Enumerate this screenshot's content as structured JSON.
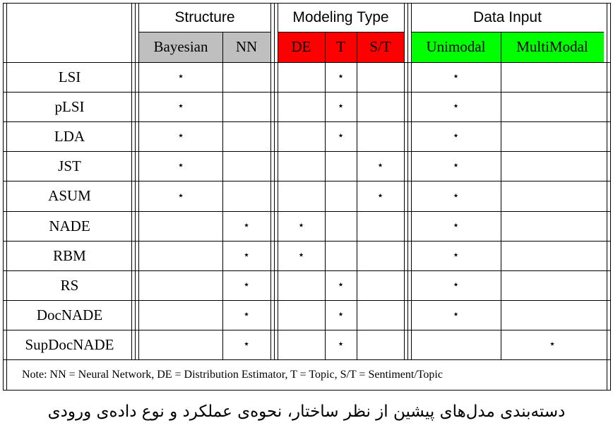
{
  "group_headers": [
    "Structure",
    "Modeling Type",
    "Data Input"
  ],
  "sub_headers": [
    {
      "label": "Bayesian",
      "color": "#bfbfbf"
    },
    {
      "label": "NN",
      "color": "#bfbfbf"
    },
    {
      "label": "DE",
      "color": "#ff0000"
    },
    {
      "label": "T",
      "color": "#ff0000"
    },
    {
      "label": "S/T",
      "color": "#ff0000"
    },
    {
      "label": "Unimodal",
      "color": "#00ff00"
    },
    {
      "label": "MultiModal",
      "color": "#00ff00"
    }
  ],
  "star_glyph": "⋆",
  "rows": [
    {
      "model": "LSI",
      "marks": [
        true,
        false,
        false,
        true,
        false,
        true,
        false
      ]
    },
    {
      "model": "pLSI",
      "marks": [
        true,
        false,
        false,
        true,
        false,
        true,
        false
      ]
    },
    {
      "model": "LDA",
      "marks": [
        true,
        false,
        false,
        true,
        false,
        true,
        false
      ]
    },
    {
      "model": "JST",
      "marks": [
        true,
        false,
        false,
        false,
        true,
        true,
        false
      ]
    },
    {
      "model": "ASUM",
      "marks": [
        true,
        false,
        false,
        false,
        true,
        true,
        false
      ]
    },
    {
      "model": "NADE",
      "marks": [
        false,
        true,
        true,
        false,
        false,
        true,
        false
      ]
    },
    {
      "model": "RBM",
      "marks": [
        false,
        true,
        true,
        false,
        false,
        true,
        false
      ]
    },
    {
      "model": "RS",
      "marks": [
        false,
        true,
        false,
        true,
        false,
        true,
        false
      ]
    },
    {
      "model": "DocNADE",
      "marks": [
        false,
        true,
        false,
        true,
        false,
        true,
        false
      ]
    },
    {
      "model": "SupDocNADE",
      "marks": [
        false,
        true,
        false,
        true,
        false,
        false,
        true
      ]
    }
  ],
  "note": "Note: NN = Neural Network, DE = Distribution Estimator, T = Topic, S/T = Sentiment/Topic",
  "caption": "دسته‌بندی مدل‌های پیشین از نظر ساختار، نحوه‌ی عملکرد و نوع داده‌ی ورودی"
}
